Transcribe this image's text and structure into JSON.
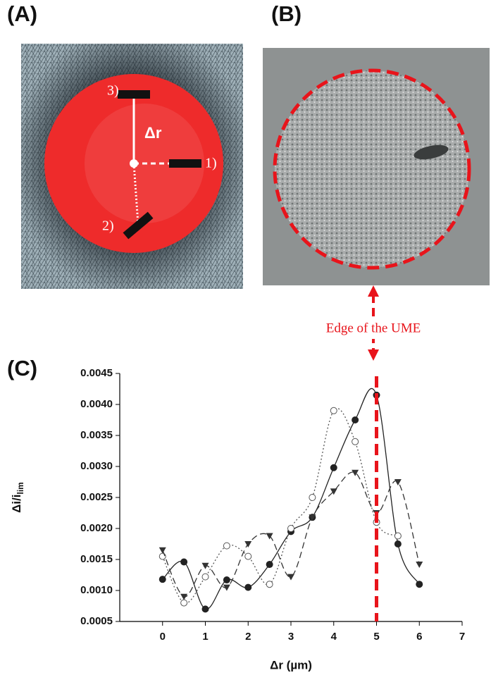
{
  "panels": {
    "A": {
      "label": "(A)",
      "marks": [
        "1)",
        "2)",
        "3)"
      ],
      "delta": "Δr"
    },
    "B": {
      "label": "(B)",
      "annotation": "Edge of the UME"
    },
    "C": {
      "label": "(C)"
    }
  },
  "chart_data": {
    "type": "line",
    "xlabel": "Δr (µm)",
    "ylabel": "Δi/i",
    "ylabel_sub": "lim",
    "xlim": [
      -1,
      7
    ],
    "xticks": [
      0,
      1,
      2,
      3,
      4,
      5,
      6,
      7
    ],
    "ylim": [
      0.0005,
      0.0045
    ],
    "yticks": [
      0.0005,
      {
        "value": 0.001,
        "label": "0.0010"
      },
      0.0015,
      {
        "value": 0.002,
        "label": "0.0020"
      },
      0.0025,
      {
        "value": 0.003,
        "label": "0.0030"
      },
      0.0035,
      {
        "value": 0.004,
        "label": "0.0040"
      },
      0.0045
    ],
    "vline": 5,
    "vline_color": "#e8141b",
    "series": [
      {
        "color": "#222",
        "dash": "solid",
        "marker": "circle-filled",
        "x": [
          0,
          0.5,
          1,
          1.5,
          2,
          2.5,
          3,
          3.5,
          4,
          4.5,
          5,
          5.5,
          6
        ],
        "values": [
          0.00118,
          0.00146,
          0.0007,
          0.00117,
          0.00105,
          0.00142,
          0.00195,
          0.00218,
          0.00298,
          0.00375,
          0.00415,
          0.00175,
          0.0011
        ]
      },
      {
        "color": "#555",
        "dash": "dotted",
        "marker": "circle-open",
        "x": [
          0,
          0.5,
          1,
          1.5,
          2,
          2.5,
          3,
          3.5,
          4,
          4.5,
          5,
          5.5
        ],
        "values": [
          0.00155,
          0.0008,
          0.00122,
          0.00172,
          0.00155,
          0.0011,
          0.002,
          0.0025,
          0.0039,
          0.0034,
          0.0021,
          0.00188
        ]
      },
      {
        "color": "#333",
        "dash": "dashed",
        "marker": "triangle-down",
        "x": [
          0,
          0.5,
          1,
          1.5,
          2,
          2.5,
          3,
          3.5,
          4,
          4.5,
          5,
          5.5,
          6
        ],
        "values": [
          0.00165,
          0.0009,
          0.0014,
          0.00105,
          0.00175,
          0.00188,
          0.00122,
          0.00218,
          0.0026,
          0.0029,
          0.00225,
          0.00275,
          0.00142
        ]
      }
    ]
  }
}
